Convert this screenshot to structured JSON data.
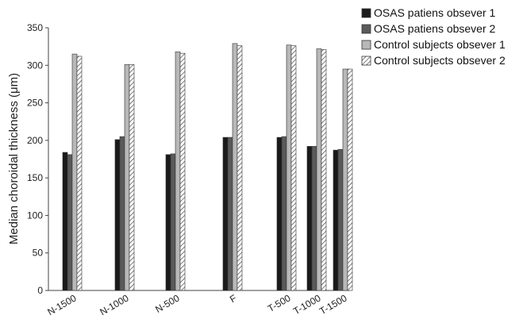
{
  "chart_data": {
    "type": "bar",
    "categories": [
      "N-1500",
      "N-1000",
      "N-500",
      "F",
      "T-500",
      "T-1000",
      "T-1500"
    ],
    "series": [
      {
        "name": "OSAS patiens obsever 1",
        "values": [
          184,
          201,
          181,
          204,
          204,
          192,
          187
        ],
        "color": "#1a1a1a",
        "pattern": "solid"
      },
      {
        "name": "OSAS patiens obsever 2",
        "values": [
          181,
          205,
          182,
          204,
          205,
          192,
          188
        ],
        "color": "#5a5a5a",
        "pattern": "solid"
      },
      {
        "name": "Control subjects obsever 1",
        "values": [
          315,
          301,
          318,
          329,
          327,
          322,
          295
        ],
        "color": "#b8b8b8",
        "pattern": "solid"
      },
      {
        "name": "Control subjects obsever 2",
        "values": [
          312,
          301,
          316,
          326,
          326,
          321,
          295
        ],
        "color": "#ffffff",
        "pattern": "hatch"
      }
    ],
    "xlabel": "",
    "ylabel": "Median choroidal thickness (μm)",
    "ylim": [
      0,
      350
    ],
    "yticks": [
      0,
      50,
      100,
      150,
      200,
      250,
      300,
      350
    ],
    "grid": false,
    "legend_position": "top-right"
  }
}
